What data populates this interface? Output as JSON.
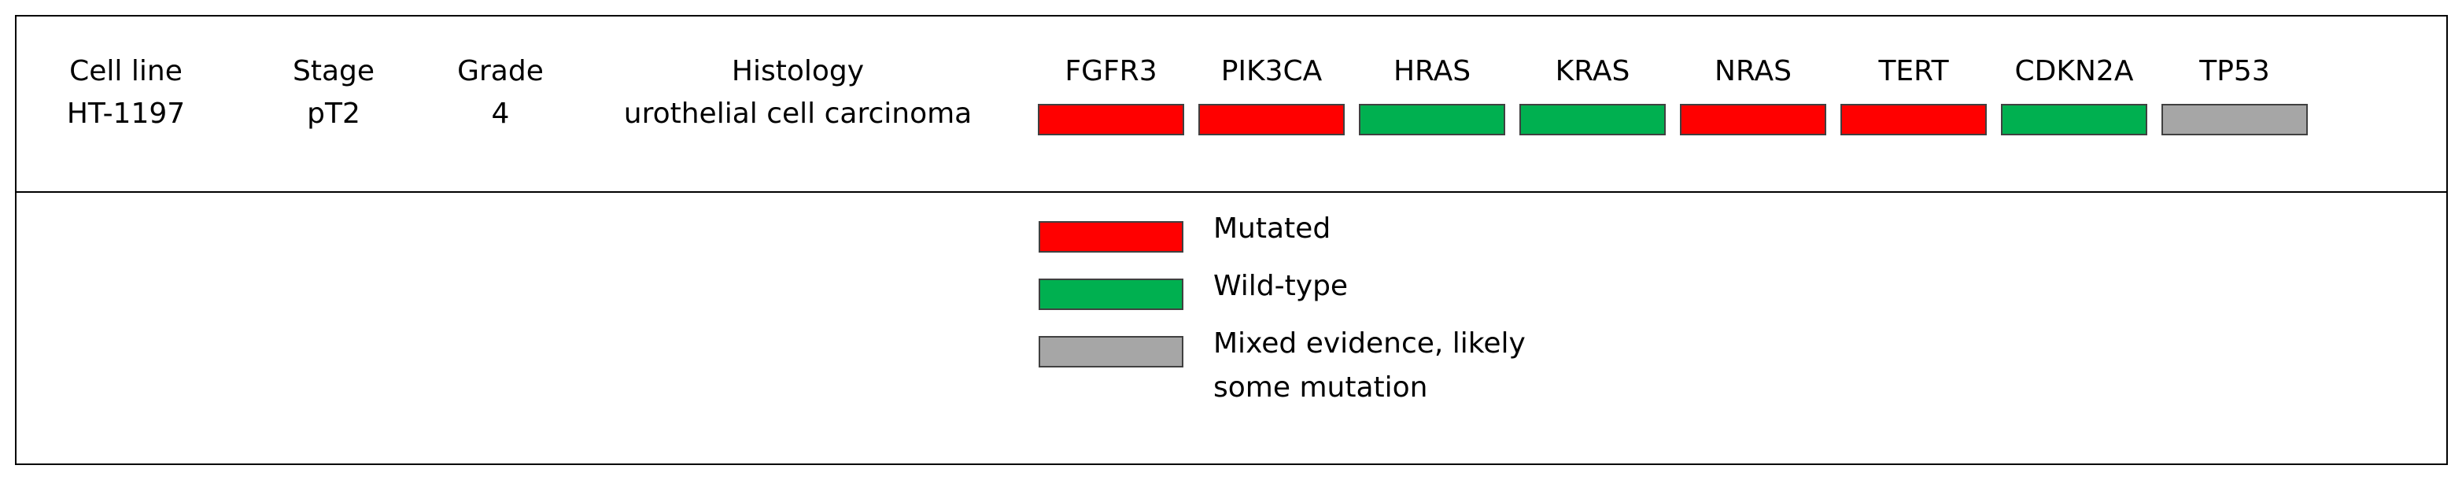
{
  "clinical": [
    {
      "header": "Cell line",
      "value": "HT-1197"
    },
    {
      "header": "Stage",
      "value": "pT2"
    },
    {
      "header": "Grade",
      "value": "4"
    },
    {
      "header": "Histology",
      "value": "urothelial cell carcinoma"
    }
  ],
  "genes": [
    {
      "name": "FGFR3",
      "color": "#ff0000"
    },
    {
      "name": "PIK3CA",
      "color": "#ff0000"
    },
    {
      "name": "HRAS",
      "color": "#00b050"
    },
    {
      "name": "KRAS",
      "color": "#00b050"
    },
    {
      "name": "NRAS",
      "color": "#ff0000"
    },
    {
      "name": "TERT",
      "color": "#ff0000"
    },
    {
      "name": "CDKN2A",
      "color": "#00b050"
    },
    {
      "name": "TP53",
      "color": "#a6a6a6"
    }
  ],
  "legend": [
    {
      "lines": [
        "Mutated"
      ],
      "color": "#ff0000"
    },
    {
      "lines": [
        "Wild-type"
      ],
      "color": "#00b050"
    },
    {
      "lines": [
        "Mixed evidence, likely",
        "some mutation"
      ],
      "color": "#a6a6a6"
    }
  ]
}
